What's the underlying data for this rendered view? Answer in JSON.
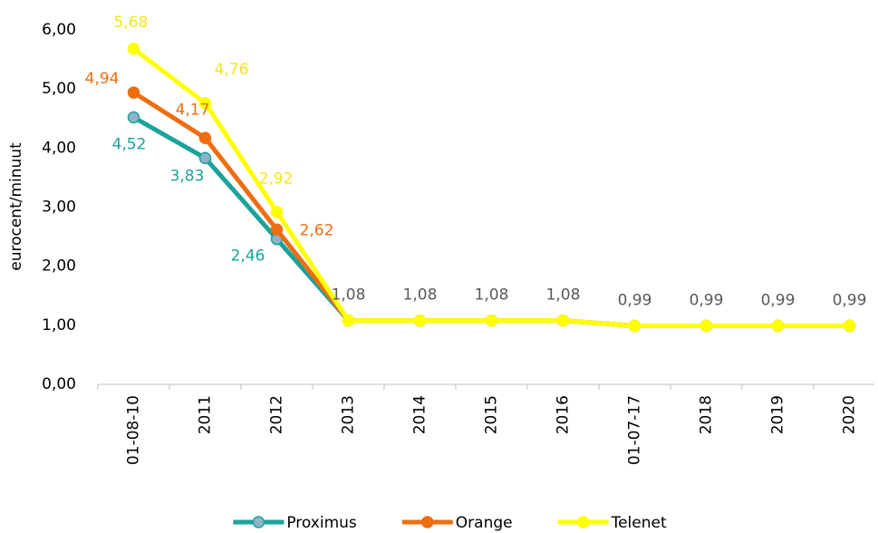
{
  "chart_data": {
    "type": "line",
    "y_label": "eurocent/minuut",
    "categories": [
      "01-08-10",
      "2011",
      "2012",
      "2013",
      "2014",
      "2015",
      "2016",
      "01-07-17",
      "2018",
      "2019",
      "2020"
    ],
    "series": [
      {
        "name": "Proximus",
        "color": "#1aa39a",
        "marker_color": "#8fb3c9",
        "values": [
          4.52,
          3.83,
          2.46,
          1.08,
          1.08,
          1.08,
          1.08,
          0.99,
          0.99,
          0.99,
          0.99
        ],
        "value_labels": [
          "4,52",
          "3,83",
          "2,46",
          null,
          null,
          null,
          null,
          null,
          null,
          null,
          null
        ]
      },
      {
        "name": "Orange",
        "color": "#ed6d11",
        "marker_color": "#ed6d11",
        "values": [
          4.94,
          4.17,
          2.62,
          1.08,
          1.08,
          1.08,
          1.08,
          0.99,
          0.99,
          0.99,
          0.99
        ],
        "value_labels": [
          "4,94",
          "4,17",
          "2,62",
          null,
          null,
          null,
          null,
          null,
          null,
          null,
          null
        ]
      },
      {
        "name": "Telenet",
        "color": "#ffff00",
        "marker_color": "#ffff00",
        "values": [
          5.68,
          4.76,
          2.92,
          1.08,
          1.08,
          1.08,
          1.08,
          0.99,
          0.99,
          0.99,
          0.99
        ],
        "value_labels": [
          "5,68",
          "4,76",
          "2,92",
          "1,08",
          "1,08",
          "1,08",
          "1,08",
          "0,99",
          "0,99",
          "0,99",
          "0,99"
        ],
        "label_colors": [
          "#f2e61c",
          "#f2e61c",
          "#f2e61c",
          "#595959",
          "#595959",
          "#595959",
          "#595959",
          "#595959",
          "#595959",
          "#595959",
          "#595959"
        ]
      }
    ],
    "ylim": [
      0,
      6
    ],
    "yticks": [
      {
        "value": 0,
        "label": "0,00"
      },
      {
        "value": 1,
        "label": "1,00"
      },
      {
        "value": 2,
        "label": "2,00"
      },
      {
        "value": 3,
        "label": "3,00"
      },
      {
        "value": 4,
        "label": "4,00"
      },
      {
        "value": 5,
        "label": "5,00"
      },
      {
        "value": 6,
        "label": "6,00"
      }
    ],
    "grid": false,
    "legend": "bottom"
  }
}
